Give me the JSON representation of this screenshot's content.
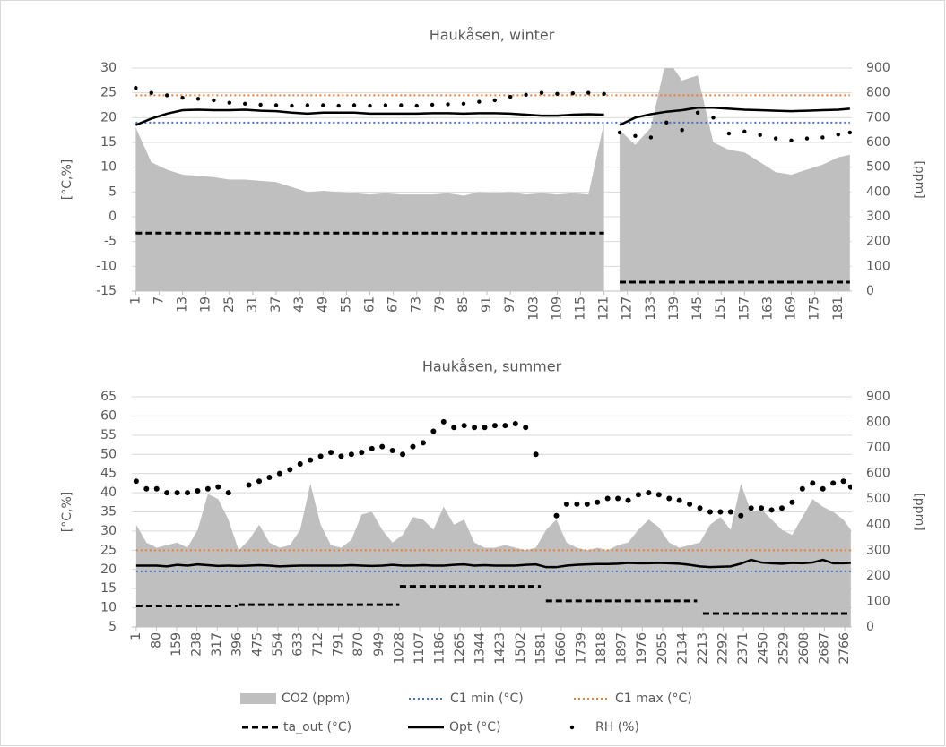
{
  "chart_data": [
    {
      "type": "combo",
      "title": "Haukåsen, winter",
      "ylabel": "[°C,%]",
      "y2label": "[ppm]",
      "xlim": [
        0,
        184.5
      ],
      "ylim": [
        -15,
        30
      ],
      "y2lim": [
        0,
        900
      ],
      "grid": true,
      "xticks": [
        1,
        7,
        13,
        19,
        25,
        31,
        37,
        43,
        49,
        55,
        61,
        67,
        73,
        79,
        85,
        91,
        97,
        103,
        109,
        115,
        121,
        127,
        133,
        139,
        145,
        151,
        157,
        163,
        169,
        175,
        181
      ],
      "yticks": [
        -15,
        -10,
        -5,
        0,
        5,
        10,
        15,
        20,
        25,
        30
      ],
      "y2ticks": [
        0,
        100,
        200,
        300,
        400,
        500,
        600,
        700,
        800,
        900
      ],
      "x": [
        1,
        5,
        9,
        13,
        17,
        21,
        25,
        29,
        33,
        37,
        41,
        45,
        49,
        53,
        57,
        61,
        65,
        69,
        73,
        77,
        81,
        85,
        89,
        93,
        97,
        101,
        105,
        109,
        113,
        117,
        121,
        123,
        125,
        129,
        133,
        137,
        141,
        145,
        149,
        153,
        157,
        161,
        165,
        169,
        173,
        177,
        181,
        184
      ],
      "series": [
        {
          "name": "CO2 (ppm)",
          "color": "#bfbfbf",
          "style": "area",
          "axis": "y2",
          "values": [
            660,
            520,
            490,
            470,
            465,
            460,
            450,
            450,
            445,
            440,
            420,
            400,
            405,
            400,
            395,
            390,
            395,
            390,
            390,
            390,
            395,
            385,
            400,
            395,
            400,
            390,
            395,
            390,
            395,
            390,
            680,
            null,
            650,
            590,
            660,
            940,
            850,
            870,
            600,
            570,
            560,
            520,
            480,
            470,
            490,
            510,
            540,
            550
          ]
        },
        {
          "name": "C1 min (°C)",
          "color": "#4472c4",
          "style": "dotted",
          "x": [
            1,
            184
          ],
          "values": [
            19,
            19
          ]
        },
        {
          "name": "C1 max (°C)",
          "color": "#ed7d31",
          "style": "dotted",
          "x": [
            1,
            184
          ],
          "values": [
            24.5,
            24.5
          ]
        },
        {
          "name": "ta_out (°C)",
          "color": "#000000",
          "style": "dashed",
          "x": [
            1,
            121,
            123,
            125,
            184
          ],
          "values": [
            -3.3,
            -3.3,
            null,
            -13.2,
            -13.2
          ]
        },
        {
          "name": "Opt (°C)",
          "color": "#000000",
          "style": "line",
          "values": [
            18.5,
            19.8,
            20.8,
            21.5,
            21.6,
            21.5,
            21.5,
            21.6,
            21.4,
            21.3,
            21.0,
            20.8,
            21.0,
            21.0,
            21.0,
            20.8,
            20.8,
            20.8,
            20.8,
            20.9,
            20.9,
            20.8,
            20.9,
            20.9,
            20.8,
            20.6,
            20.4,
            20.4,
            20.6,
            20.7,
            20.6,
            null,
            18.5,
            20.0,
            20.7,
            21.2,
            21.5,
            22.0,
            22.0,
            21.8,
            21.6,
            21.5,
            21.4,
            21.3,
            21.4,
            21.5,
            21.6,
            21.8
          ]
        },
        {
          "name": "RH (%)",
          "color": "#000000",
          "style": "dots",
          "values": [
            26,
            25,
            24.5,
            24,
            23.8,
            23.5,
            23,
            22.8,
            22.6,
            22.5,
            22.4,
            22.5,
            22.5,
            22.4,
            22.5,
            22.4,
            22.5,
            22.5,
            22.4,
            22.6,
            22.7,
            22.8,
            23.2,
            23.5,
            24.2,
            24.6,
            25.0,
            24.8,
            24.9,
            25.0,
            24.8,
            null,
            17.0,
            16.3,
            16.0,
            19.0,
            17.5,
            21.0,
            20.0,
            16.8,
            17.2,
            16.5,
            15.8,
            15.4,
            15.8,
            16.0,
            16.6,
            17.0
          ]
        }
      ]
    },
    {
      "type": "combo",
      "title": "Haukåsen, summer",
      "ylabel": "[°C,%]",
      "y2label": "[ppm]",
      "xlim": [
        -16,
        2794
      ],
      "ylim": [
        5,
        65
      ],
      "y2lim": [
        0,
        900
      ],
      "grid": true,
      "xticks": [
        1,
        80,
        159,
        238,
        317,
        396,
        475,
        554,
        633,
        712,
        791,
        870,
        949,
        1028,
        1107,
        1186,
        1265,
        1344,
        1423,
        1502,
        1581,
        1660,
        1739,
        1818,
        1897,
        1976,
        2055,
        2134,
        2213,
        2292,
        2371,
        2450,
        2529,
        2608,
        2687,
        2766
      ],
      "yticks": [
        5,
        10,
        15,
        20,
        25,
        30,
        35,
        40,
        45,
        50,
        55,
        60,
        65
      ],
      "y2ticks": [
        0,
        100,
        200,
        300,
        400,
        500,
        600,
        700,
        800,
        900
      ],
      "x": [
        1,
        41,
        81,
        121,
        161,
        201,
        241,
        281,
        321,
        361,
        401,
        441,
        481,
        521,
        561,
        601,
        641,
        681,
        721,
        761,
        801,
        841,
        881,
        921,
        961,
        1001,
        1041,
        1081,
        1121,
        1161,
        1201,
        1241,
        1281,
        1321,
        1361,
        1401,
        1441,
        1481,
        1521,
        1561,
        1601,
        1641,
        1681,
        1721,
        1761,
        1801,
        1841,
        1881,
        1921,
        1961,
        2001,
        2041,
        2081,
        2121,
        2161,
        2201,
        2241,
        2281,
        2321,
        2361,
        2401,
        2441,
        2481,
        2521,
        2561,
        2601,
        2641,
        2681,
        2721,
        2761,
        2790
      ],
      "series": [
        {
          "color": "#bfbfbf",
          "style": "area",
          "axis": "y2",
          "values": [
            400,
            330,
            310,
            320,
            330,
            310,
            380,
            520,
            500,
            420,
            300,
            340,
            400,
            330,
            310,
            320,
            380,
            560,
            400,
            320,
            310,
            340,
            440,
            450,
            380,
            330,
            360,
            430,
            420,
            380,
            470,
            400,
            420,
            330,
            310,
            310,
            320,
            310,
            300,
            310,
            380,
            420,
            330,
            310,
            300,
            310,
            300,
            320,
            330,
            380,
            420,
            390,
            330,
            310,
            320,
            330,
            400,
            430,
            380,
            560,
            450,
            460,
            420,
            380,
            360,
            430,
            500,
            470,
            450,
            420,
            380
          ]
        },
        {
          "color": "#4472c4",
          "style": "dotted",
          "x": [
            1,
            2790
          ],
          "values": [
            19.5,
            19.5
          ]
        },
        {
          "color": "#ed7d31",
          "style": "dotted",
          "x": [
            1,
            2790
          ],
          "values": [
            25,
            25
          ]
        },
        {
          "color": "#000000",
          "style": "dashed",
          "x": [
            1,
            396,
            398,
            400,
            1028,
            1029,
            1030,
            1580,
            1590,
            1600,
            2190,
            2200,
            2213,
            2790
          ],
          "values": [
            10.5,
            10.5,
            null,
            10.8,
            10.8,
            null,
            15.6,
            15.6,
            null,
            11.8,
            11.8,
            null,
            8.5,
            8.5
          ]
        },
        {
          "color": "#000000",
          "style": "line",
          "values": [
            21,
            21,
            21,
            20.8,
            21.2,
            21,
            21.3,
            21.1,
            20.9,
            21,
            20.9,
            21,
            21.1,
            21,
            20.8,
            20.9,
            21,
            21,
            21,
            21,
            21,
            21.1,
            21,
            20.9,
            21,
            21.2,
            21,
            21,
            21.1,
            21,
            21,
            21.2,
            21.3,
            21,
            21.1,
            21,
            21,
            21,
            21.2,
            21.3,
            20.6,
            20.6,
            21,
            21.2,
            21.3,
            21.4,
            21.4,
            21.5,
            21.7,
            21.6,
            21.6,
            21.7,
            21.6,
            21.5,
            21.2,
            20.8,
            20.6,
            20.7,
            20.8,
            21.5,
            22.5,
            21.8,
            21.6,
            21.5,
            21.7,
            21.6,
            21.8,
            22.5,
            21.6,
            21.6,
            21.7
          ]
        },
        {
          "color": "#000000",
          "style": "dots",
          "values": [
            43,
            41,
            41,
            40,
            40,
            40,
            40.5,
            41,
            41.5,
            40,
            null,
            42,
            43,
            44,
            45,
            46,
            47.5,
            48.5,
            49.5,
            50.5,
            49.5,
            50,
            50.5,
            51.5,
            52,
            51,
            50,
            52,
            53,
            56,
            58.5,
            57,
            57.5,
            57,
            57,
            57.5,
            57.5,
            58,
            57,
            50,
            null,
            34,
            37,
            37,
            37,
            37.5,
            38.5,
            38.5,
            38,
            39.5,
            40,
            39.5,
            38.5,
            38,
            37,
            36,
            35,
            35,
            35,
            34,
            36,
            36,
            35.5,
            36,
            37.5,
            41,
            42.5,
            41,
            42.5,
            43,
            41.5
          ]
        }
      ]
    }
  ]
}
